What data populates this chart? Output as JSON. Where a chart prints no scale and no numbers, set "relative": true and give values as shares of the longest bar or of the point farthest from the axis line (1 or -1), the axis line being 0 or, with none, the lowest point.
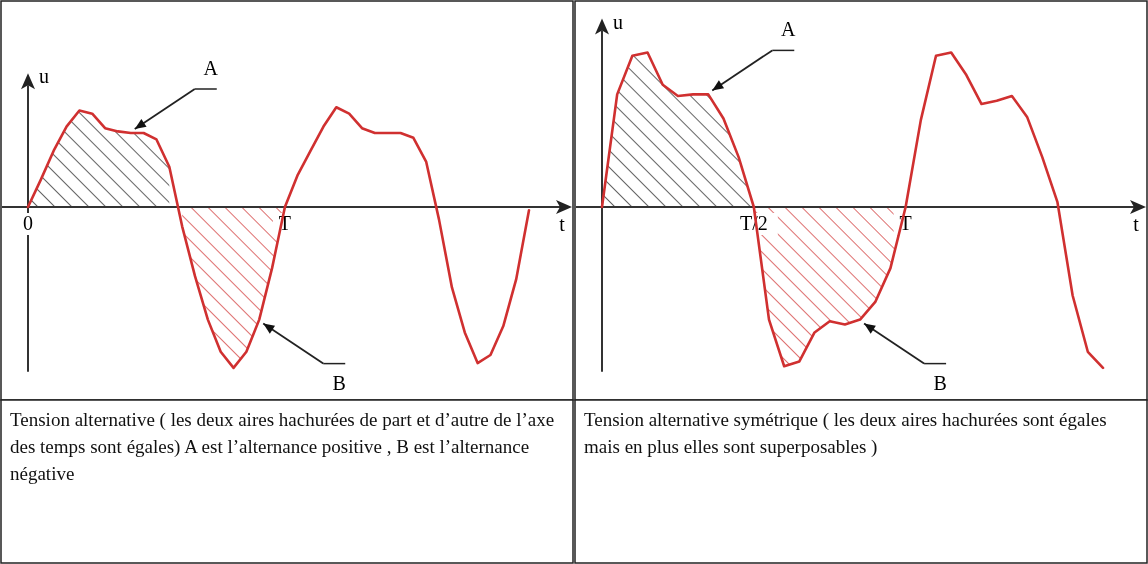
{
  "chart_data": [
    {
      "type": "line",
      "relative": true,
      "xlabel": "t",
      "ylabel": "u",
      "tick_labels": "x",
      "categories": [
        "0",
        null,
        null,
        null,
        null,
        null,
        null,
        null,
        null,
        null,
        null,
        null,
        null,
        null,
        null,
        null,
        null,
        null,
        null,
        null,
        "T",
        null,
        null,
        null,
        null,
        null,
        null,
        null,
        null,
        null,
        null,
        null,
        null,
        null,
        null,
        null,
        null,
        null,
        null,
        null
      ],
      "series": [
        {
          "color": "#d03030",
          "values": [
            0,
            0.17,
            0.35,
            0.5,
            0.6,
            0.58,
            0.49,
            0.47,
            0.46,
            0.46,
            0.42,
            0.25,
            -0.12,
            -0.43,
            -0.7,
            -0.9,
            -1.0,
            -0.9,
            -0.7,
            -0.38,
            0,
            0.2,
            0.35,
            0.5,
            0.62,
            0.58,
            0.49,
            0.46,
            0.46,
            0.46,
            0.43,
            0.28,
            -0.08,
            -0.5,
            -0.78,
            -0.97,
            -0.92,
            -0.74,
            -0.45,
            -0.02
          ]
        },
        {
          "type": "area",
          "name": "A",
          "color": "#222222",
          "values": [
            0,
            0.17,
            0.35,
            0.5,
            0.6,
            0.58,
            0.49,
            0.47,
            0.46,
            0.46,
            0.42,
            0.25,
            null,
            null,
            null,
            null,
            null,
            null,
            null,
            null,
            null,
            null,
            null,
            null,
            null,
            null,
            null,
            null,
            null,
            null,
            null,
            null,
            null,
            null,
            null,
            null,
            null,
            null,
            null,
            null
          ]
        },
        {
          "type": "area",
          "name": "B",
          "color": "#d03030",
          "values": [
            null,
            null,
            null,
            null,
            null,
            null,
            null,
            null,
            null,
            null,
            null,
            null,
            -0.12,
            -0.43,
            -0.7,
            -0.9,
            -1.0,
            -0.9,
            -0.7,
            -0.38,
            0,
            null,
            null,
            null,
            null,
            null,
            null,
            null,
            null,
            null,
            null,
            null,
            null,
            null,
            null,
            null,
            null,
            null,
            null,
            null
          ]
        }
      ],
      "annotations": [
        "Tension alternative ( les deux aires hachurées de part et d’autre de l’axe des temps sont égales) A est l’alternance positive , B est l’alternance négative"
      ]
    },
    {
      "type": "line",
      "relative": true,
      "xlabel": "t",
      "ylabel": "u",
      "tick_labels": "x",
      "categories": [
        null,
        null,
        null,
        null,
        null,
        null,
        null,
        null,
        null,
        null,
        "T/2",
        null,
        null,
        null,
        null,
        null,
        null,
        null,
        null,
        null,
        "T",
        null,
        null,
        null,
        null,
        null,
        null,
        null,
        null,
        null,
        null,
        null,
        null,
        null
      ],
      "series": [
        {
          "color": "#d03030",
          "values": [
            0,
            0.7,
            0.94,
            0.96,
            0.76,
            0.69,
            0.7,
            0.7,
            0.55,
            0.31,
            0,
            -0.7,
            -0.99,
            -0.96,
            -0.78,
            -0.71,
            -0.73,
            -0.7,
            -0.59,
            -0.38,
            0,
            0.54,
            0.94,
            0.96,
            0.82,
            0.64,
            0.66,
            0.69,
            0.56,
            0.31,
            0.03,
            -0.55,
            -0.9,
            -1.0
          ]
        },
        {
          "type": "area",
          "name": "A",
          "color": "#222222",
          "values": [
            0,
            0.7,
            0.94,
            0.96,
            0.76,
            0.69,
            0.7,
            0.7,
            0.55,
            0.31,
            0,
            null,
            null,
            null,
            null,
            null,
            null,
            null,
            null,
            null,
            null,
            null,
            null,
            null,
            null,
            null,
            null,
            null,
            null,
            null,
            null,
            null,
            null,
            null
          ]
        },
        {
          "type": "area",
          "name": "B",
          "color": "#d03030",
          "values": [
            null,
            null,
            null,
            null,
            null,
            null,
            null,
            null,
            null,
            null,
            0,
            -0.7,
            -0.99,
            -0.96,
            -0.78,
            -0.71,
            -0.73,
            -0.7,
            -0.59,
            -0.38,
            0,
            null,
            null,
            null,
            null,
            null,
            null,
            null,
            null,
            null,
            null,
            null,
            null,
            null
          ]
        }
      ],
      "annotations": [
        "Tension alternative symétrique ( les deux aires hachurées sont égales mais en plus elles sont superposables )"
      ]
    }
  ]
}
